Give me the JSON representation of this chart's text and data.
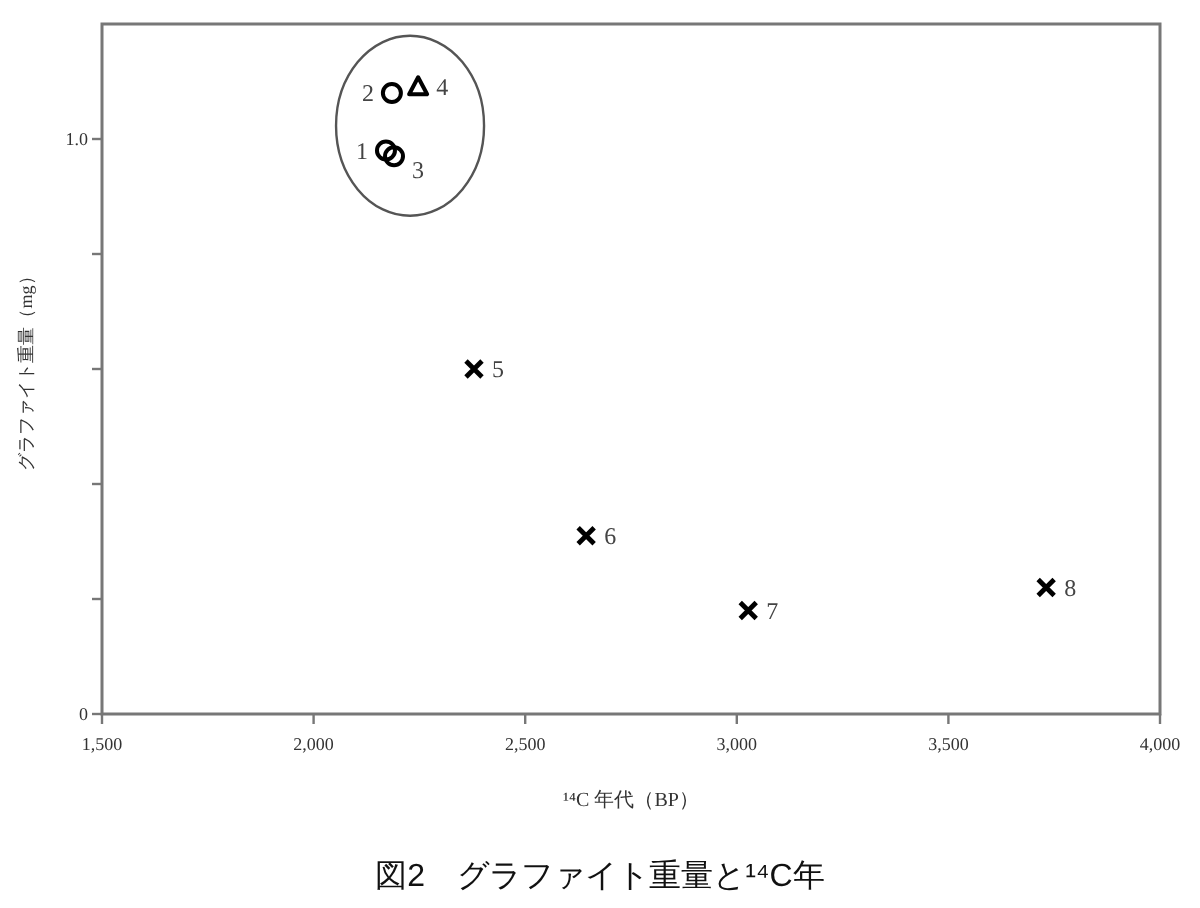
{
  "chart_data": {
    "type": "scatter",
    "title": "図2　グラファイト重量と¹⁴C年",
    "xlabel": "¹⁴C 年代（BP）",
    "ylabel": "グラファイト重量（mg）",
    "xlim": [
      1500,
      4000
    ],
    "ylim": [
      0,
      1.2
    ],
    "xticks": [
      {
        "value": 1500,
        "label": "1,500"
      },
      {
        "value": 2000,
        "label": "2,000"
      },
      {
        "value": 2500,
        "label": "2,500"
      },
      {
        "value": 3000,
        "label": "3,000"
      },
      {
        "value": 3500,
        "label": "3,500"
      },
      {
        "value": 4000,
        "label": "4,000"
      }
    ],
    "yticks": [
      0,
      {
        "value": 0.2,
        "label": null
      },
      {
        "value": 0.4,
        "label": null
      },
      {
        "value": 0.6,
        "label": null
      },
      {
        "value": 0.8,
        "label": null
      },
      {
        "value": 1.0,
        "label": "1.0"
      }
    ],
    "grid": false,
    "series": [
      {
        "color": "#000000",
        "marker": "circle",
        "x": [
          2171,
          2185,
          2190
        ],
        "values": [
          0.98,
          1.08,
          0.97
        ]
      },
      {
        "color": "#000000",
        "marker": "triangle",
        "x": [
          2247
        ],
        "values": [
          1.09
        ]
      },
      {
        "color": "#000000",
        "marker": "cross",
        "x": [
          2379,
          2644,
          3027,
          3731
        ],
        "values": [
          0.6,
          0.31,
          0.18,
          0.22
        ]
      }
    ],
    "annotations": [
      {
        "text": "1",
        "x": 2171,
        "y": 0.98
      },
      {
        "text": "2",
        "x": 2185,
        "y": 1.08
      },
      {
        "text": "3",
        "x": 2190,
        "y": 0.97
      },
      {
        "text": "4",
        "x": 2247,
        "y": 1.09
      },
      {
        "text": "5",
        "x": 2379,
        "y": 0.6
      },
      {
        "text": "6",
        "x": 2644,
        "y": 0.31
      },
      {
        "text": "7",
        "x": 3027,
        "y": 0.18
      },
      {
        "text": "8",
        "x": 3731,
        "y": 0.22
      }
    ]
  }
}
